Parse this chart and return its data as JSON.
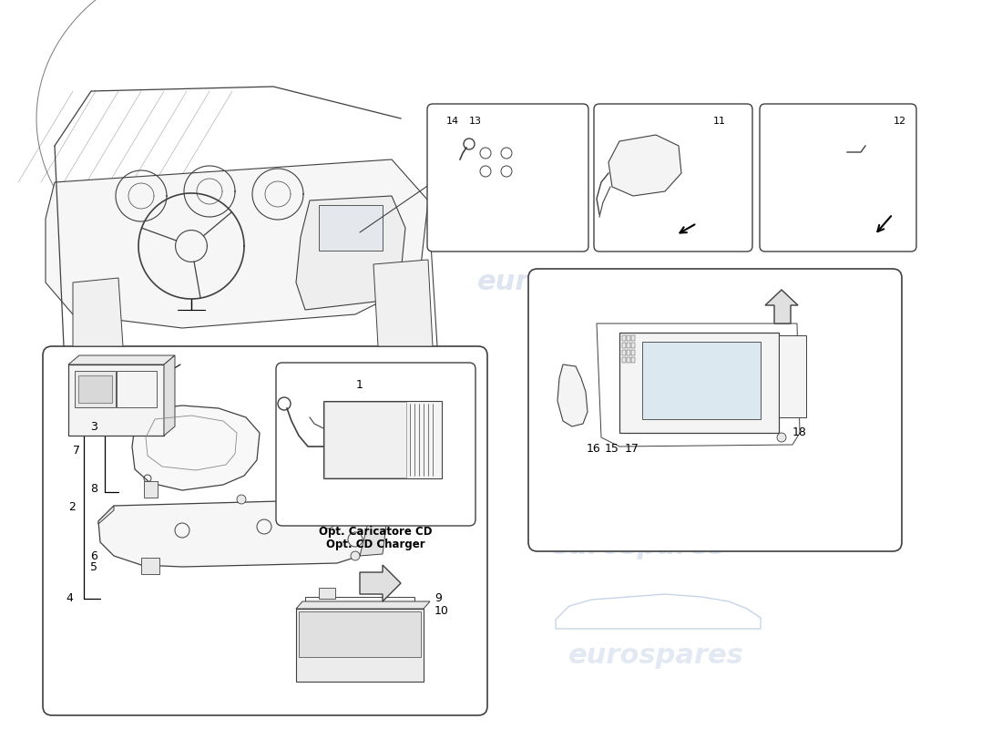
{
  "bg_color": "#ffffff",
  "line_color": "#404040",
  "light_line": "#888888",
  "fill_light": "#f4f4f4",
  "fill_mid": "#e8e8e8",
  "watermark_color": "#c8d4e8",
  "watermark_text": "eurospares",
  "cd_charger_label_it": "Opt. Caricatore CD",
  "cd_charger_label_en": "Opt. CD Charger",
  "fig_w": 11.0,
  "fig_h": 8.0,
  "dpi": 100
}
